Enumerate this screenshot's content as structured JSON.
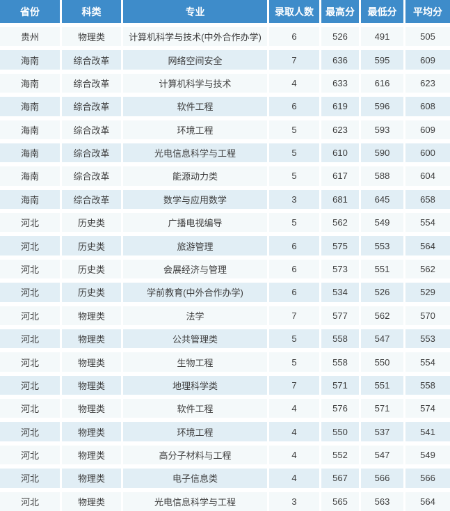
{
  "colors": {
    "header_bg": "#3e8cca",
    "header_text": "#ffffff",
    "row_light": "#f4f9fa",
    "row_blue": "#e1eef5",
    "cell_text": "#3d3d3d",
    "gap": "#ffffff"
  },
  "table": {
    "headers": [
      "省份",
      "科类",
      "专业",
      "录取人数",
      "最高分",
      "最低分",
      "平均分"
    ],
    "rows": [
      [
        "贵州",
        "物理类",
        "计算机科学与技术(中外合作办学)",
        "6",
        "526",
        "491",
        "505"
      ],
      [
        "海南",
        "综合改革",
        "网络空间安全",
        "7",
        "636",
        "595",
        "609"
      ],
      [
        "海南",
        "综合改革",
        "计算机科学与技术",
        "4",
        "633",
        "616",
        "623"
      ],
      [
        "海南",
        "综合改革",
        "软件工程",
        "6",
        "619",
        "596",
        "608"
      ],
      [
        "海南",
        "综合改革",
        "环境工程",
        "5",
        "623",
        "593",
        "609"
      ],
      [
        "海南",
        "综合改革",
        "光电信息科学与工程",
        "5",
        "610",
        "590",
        "600"
      ],
      [
        "海南",
        "综合改革",
        "能源动力类",
        "5",
        "617",
        "588",
        "604"
      ],
      [
        "海南",
        "综合改革",
        "数学与应用数学",
        "3",
        "681",
        "645",
        "658"
      ],
      [
        "河北",
        "历史类",
        "广播电视编导",
        "5",
        "562",
        "549",
        "554"
      ],
      [
        "河北",
        "历史类",
        "旅游管理",
        "6",
        "575",
        "553",
        "564"
      ],
      [
        "河北",
        "历史类",
        "会展经济与管理",
        "6",
        "573",
        "551",
        "562"
      ],
      [
        "河北",
        "历史类",
        "学前教育(中外合作办学)",
        "6",
        "534",
        "526",
        "529"
      ],
      [
        "河北",
        "物理类",
        "法学",
        "7",
        "577",
        "562",
        "570"
      ],
      [
        "河北",
        "物理类",
        "公共管理类",
        "5",
        "558",
        "547",
        "553"
      ],
      [
        "河北",
        "物理类",
        "生物工程",
        "5",
        "558",
        "550",
        "554"
      ],
      [
        "河北",
        "物理类",
        "地理科学类",
        "7",
        "571",
        "551",
        "558"
      ],
      [
        "河北",
        "物理类",
        "软件工程",
        "4",
        "576",
        "571",
        "574"
      ],
      [
        "河北",
        "物理类",
        "环境工程",
        "4",
        "550",
        "537",
        "541"
      ],
      [
        "河北",
        "物理类",
        "高分子材料与工程",
        "4",
        "552",
        "547",
        "549"
      ],
      [
        "河北",
        "物理类",
        "电子信息类",
        "4",
        "567",
        "566",
        "566"
      ],
      [
        "河北",
        "物理类",
        "光电信息科学与工程",
        "3",
        "565",
        "563",
        "564"
      ]
    ]
  }
}
